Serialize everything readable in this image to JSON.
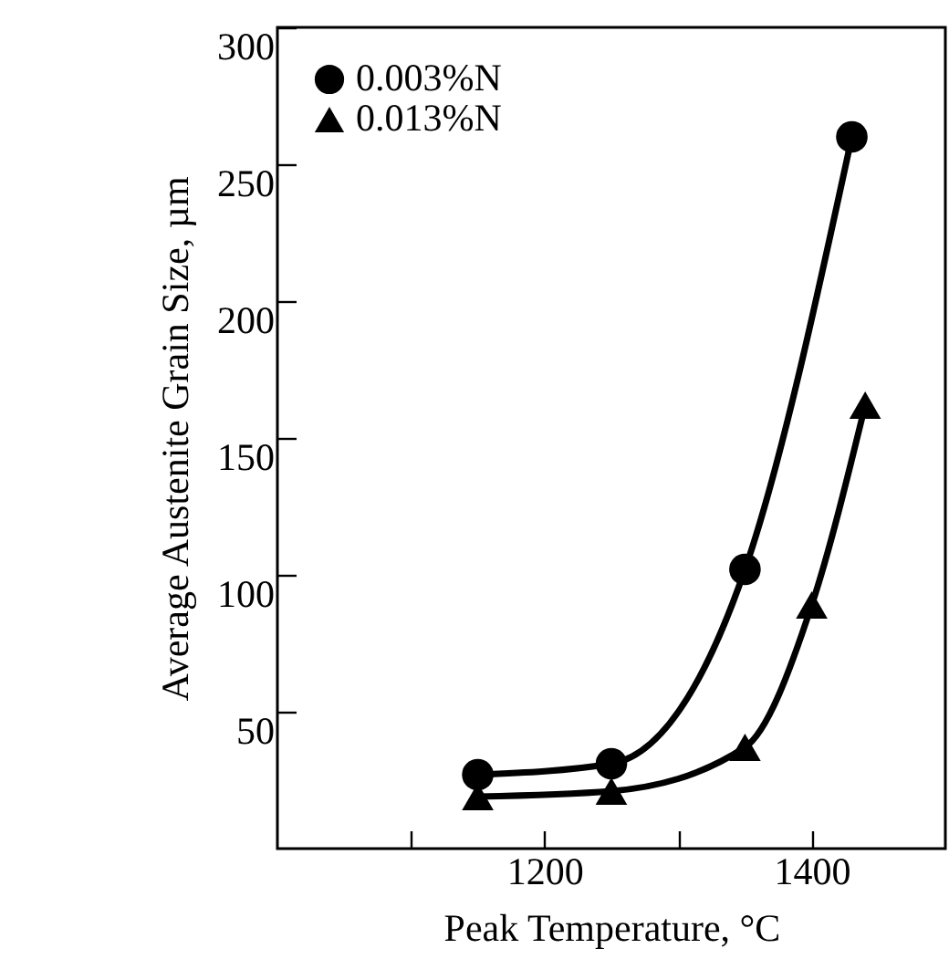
{
  "chart_data": {
    "type": "line",
    "xlabel": "Peak Temperature, °C",
    "ylabel": "Average Austenite Grain Size, µm",
    "xlim": [
      1000,
      1500
    ],
    "xticks": [
      {
        "value": 1100,
        "label": null
      },
      1200,
      {
        "value": 1300,
        "label": null
      },
      1400
    ],
    "ylim": [
      0,
      300
    ],
    "yticks": [
      50,
      100,
      150,
      200,
      250,
      300
    ],
    "grid": false,
    "legend": "top left",
    "series": [
      {
        "name": "0.003%N",
        "color": "#000000",
        "marker": "circle",
        "x": [
          1150,
          1250,
          1350,
          1430
        ],
        "values": [
          27,
          31,
          102,
          260
        ]
      },
      {
        "name": "0.013%N",
        "color": "#000000",
        "marker": "triangle",
        "x": [
          1150,
          1250,
          1350,
          1400,
          1440
        ],
        "values": [
          19,
          21,
          37,
          89,
          162
        ]
      }
    ]
  }
}
